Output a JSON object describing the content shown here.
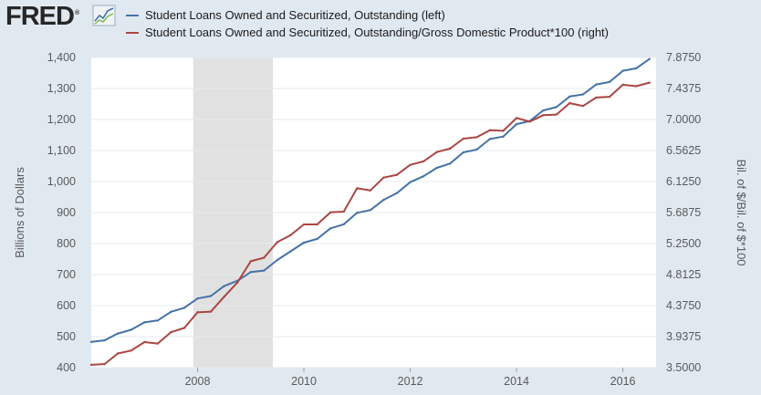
{
  "brand": {
    "name": "FRED",
    "registered": "®",
    "icon": "chart-line-icon"
  },
  "colors": {
    "series_left": "#4572a7",
    "series_right": "#aa4643",
    "recession": "#e1e1e1",
    "plot_bg": "#ffffff",
    "page_bg": "#e1e9f0",
    "grid": "#e6ebf0"
  },
  "chart_data": {
    "type": "line",
    "x_axis": {
      "ticks": [
        "2008",
        "2010",
        "2012",
        "2014",
        "2016"
      ],
      "range": [
        2006.0,
        2016.625
      ]
    },
    "y_left": {
      "label": "Billions of Dollars",
      "ticks": [
        "400",
        "500",
        "600",
        "700",
        "800",
        "900",
        "1,000",
        "1,100",
        "1,200",
        "1,300",
        "1,400"
      ],
      "range": [
        400,
        1400
      ]
    },
    "y_right": {
      "label": "Bil. of $/Bil. of $*100",
      "ticks": [
        "3.5000",
        "3.9375",
        "4.3750",
        "4.8125",
        "5.2500",
        "5.6875",
        "6.1250",
        "6.5625",
        "7.0000",
        "7.4375",
        "7.8750"
      ],
      "range": [
        3.5,
        7.875
      ]
    },
    "recession": {
      "start": 2007.917,
      "end": 2009.417
    },
    "grid": true,
    "legend_position": "top",
    "series": [
      {
        "name": "Student Loans Owned and Securitized, Outstanding (left)",
        "axis": "left",
        "x": [
          2006.0,
          2006.25,
          2006.5,
          2006.75,
          2007.0,
          2007.25,
          2007.5,
          2007.75,
          2008.0,
          2008.25,
          2008.5,
          2008.75,
          2009.0,
          2009.25,
          2009.5,
          2009.75,
          2010.0,
          2010.25,
          2010.5,
          2010.75,
          2011.0,
          2011.25,
          2011.5,
          2011.75,
          2012.0,
          2012.25,
          2012.5,
          2012.75,
          2013.0,
          2013.25,
          2013.5,
          2013.75,
          2014.0,
          2014.25,
          2014.5,
          2014.75,
          2015.0,
          2015.25,
          2015.5,
          2015.75,
          2016.0,
          2016.25,
          2016.5
        ],
        "y": [
          483,
          488,
          510,
          522,
          546,
          552,
          580,
          593,
          623,
          631,
          663,
          680,
          708,
          713,
          747,
          775,
          803,
          815,
          849,
          862,
          899,
          908,
          941,
          963,
          998,
          1017,
          1044,
          1058,
          1094,
          1103,
          1137,
          1145,
          1185,
          1195,
          1229,
          1240,
          1274,
          1281,
          1313,
          1321,
          1357,
          1365,
          1395
        ]
      },
      {
        "name": "Student Loans Owned and Securitized, Outstanding/Gross Domestic Product*100 (right)",
        "axis": "right",
        "x": [
          2006.0,
          2006.25,
          2006.5,
          2006.75,
          2007.0,
          2007.25,
          2007.5,
          2007.75,
          2008.0,
          2008.25,
          2008.5,
          2008.75,
          2009.0,
          2009.25,
          2009.5,
          2009.75,
          2010.0,
          2010.25,
          2010.5,
          2010.75,
          2011.0,
          2011.25,
          2011.5,
          2011.75,
          2012.0,
          2012.25,
          2012.5,
          2012.75,
          2013.0,
          2013.25,
          2013.5,
          2013.75,
          2014.0,
          2014.25,
          2014.5,
          2014.75,
          2015.0,
          2015.25,
          2015.5,
          2015.75,
          2016.0,
          2016.25,
          2016.5
        ],
        "y": [
          3.54,
          3.55,
          3.7,
          3.74,
          3.86,
          3.84,
          4.0,
          4.06,
          4.28,
          4.29,
          4.5,
          4.7,
          5.0,
          5.05,
          5.27,
          5.37,
          5.52,
          5.52,
          5.69,
          5.7,
          6.03,
          6.0,
          6.18,
          6.22,
          6.36,
          6.41,
          6.54,
          6.59,
          6.73,
          6.75,
          6.85,
          6.84,
          7.02,
          6.97,
          7.06,
          7.07,
          7.23,
          7.19,
          7.31,
          7.32,
          7.49,
          7.47,
          7.52
        ]
      }
    ]
  }
}
